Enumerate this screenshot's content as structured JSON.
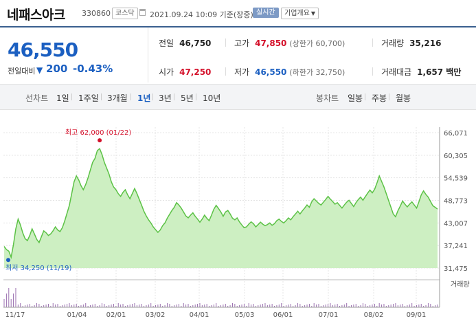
{
  "header": {
    "name": "네패스아크",
    "code": "330860",
    "market": "코스닥",
    "datetime": "2021.09.24 10:09 기준(장중)",
    "realtime": "실시간",
    "overview": "기업개요"
  },
  "price": {
    "current": "46,550",
    "change_label": "전일대비",
    "change_arrow": "▼",
    "change": "200",
    "change_pct": "-0.43%"
  },
  "stats": {
    "prev": {
      "label": "전일",
      "value": "46,750"
    },
    "high": {
      "label": "고가",
      "value": "47,850",
      "sub": "(상한가 60,700)"
    },
    "volume": {
      "label": "거래량",
      "value": "35,216"
    },
    "open": {
      "label": "시가",
      "value": "47,250"
    },
    "low": {
      "label": "저가",
      "value": "46,550",
      "sub": "(하한가 32,750)"
    },
    "amount": {
      "label": "거래대금",
      "value": "1,657 백만"
    }
  },
  "toolbar": {
    "line_label": "선차트",
    "periods": [
      "1일",
      "1주일",
      "3개월",
      "1년",
      "3년",
      "5년",
      "10년"
    ],
    "selected_period": "1년",
    "candle_label": "봉차트",
    "candles": [
      "일봉",
      "주봉",
      "월봉"
    ]
  },
  "colors": {
    "accent": "#1b5fc1",
    "up": "#d4102a",
    "line": "#5cc246",
    "fill": "#cdefc2"
  },
  "chart_data": {
    "type": "area",
    "title": "",
    "yticks": [
      "66,071",
      "60,305",
      "54,539",
      "48,773",
      "43,007",
      "37,241",
      "31,475"
    ],
    "ylim": [
      31475,
      66071
    ],
    "xticks": [
      "11/17",
      "01/04",
      "02/01",
      "03/02",
      "04/01",
      "05/03",
      "06/01",
      "07/01",
      "08/02",
      "09/01"
    ],
    "max_label": "최고 62,000 (01/22)",
    "min_label": "최저 34,250 (11/19)",
    "volume_label": "거래량",
    "values": [
      37000,
      36200,
      35800,
      34250,
      37500,
      41500,
      44000,
      42500,
      40500,
      39000,
      38500,
      39800,
      41500,
      40200,
      38800,
      38000,
      39500,
      41000,
      40500,
      39800,
      40200,
      41000,
      42000,
      41200,
      40800,
      41800,
      43500,
      45500,
      47500,
      50500,
      53500,
      55000,
      54000,
      52500,
      51500,
      52800,
      54500,
      56500,
      58500,
      59500,
      61500,
      62000,
      60500,
      58500,
      57000,
      55500,
      53500,
      52200,
      51500,
      50500,
      49800,
      50800,
      51500,
      50200,
      49200,
      50500,
      51800,
      50500,
      49000,
      47500,
      46000,
      44800,
      43800,
      43000,
      42000,
      41300,
      40600,
      41200,
      42300,
      43000,
      44200,
      45200,
      46200,
      47000,
      48200,
      47600,
      46800,
      45800,
      44800,
      44300,
      45000,
      45600,
      44700,
      44000,
      43200,
      44000,
      45000,
      44200,
      43600,
      45000,
      46500,
      47500,
      46700,
      45800,
      44700,
      45800,
      46200,
      45300,
      44200,
      43800,
      44300,
      43300,
      42500,
      41800,
      42000,
      42700,
      43300,
      42800,
      42000,
      42600,
      43200,
      42700,
      42300,
      42600,
      43000,
      42400,
      42800,
      43600,
      44000,
      43400,
      43000,
      43600,
      44300,
      43800,
      44600,
      45300,
      46000,
      45300,
      46100,
      46800,
      47600,
      47000,
      48400,
      49200,
      48600,
      48000,
      47600,
      48300,
      49000,
      49800,
      49100,
      48500,
      47800,
      48200,
      47500,
      46800,
      47600,
      48300,
      48800,
      48000,
      47200,
      48200,
      49000,
      49600,
      48800,
      49700,
      50600,
      51400,
      50700,
      51600,
      53200,
      55000,
      53600,
      52200,
      50500,
      48700,
      47000,
      45300,
      44600,
      46100,
      47300,
      48600,
      47800,
      47100,
      47800,
      48400,
      47600,
      46800,
      48400,
      50200,
      51200,
      50300,
      49600,
      48500,
      47400,
      47000,
      46550
    ]
  }
}
